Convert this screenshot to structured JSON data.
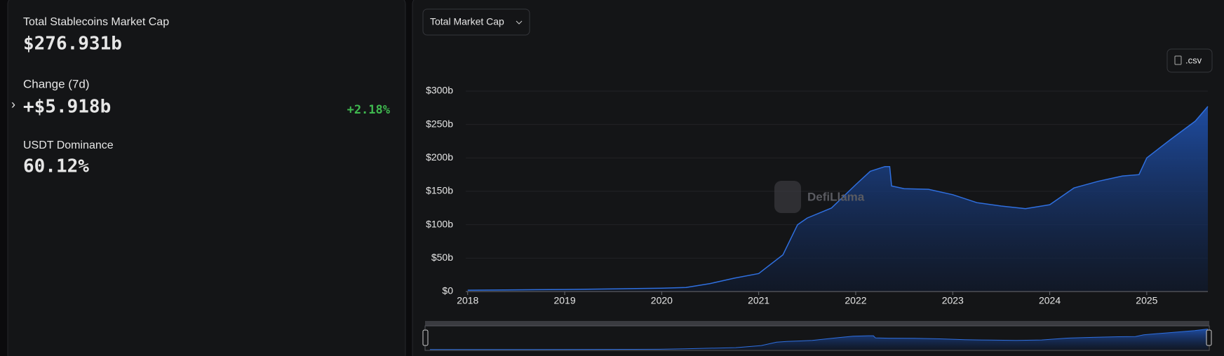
{
  "panel": {
    "stats": [
      {
        "label": "Total Stablecoins Market Cap",
        "value": "$276.931b"
      },
      {
        "label": "Change (7d)",
        "value": "+$5.918b"
      },
      {
        "label": "USDT Dominance",
        "value": "60.12%"
      }
    ],
    "change_pct": "+2.18%"
  },
  "controls": {
    "dropdown": "Total Market Cap",
    "csv": ".csv"
  },
  "chart_data": {
    "type": "area",
    "watermark": "DefiLlama",
    "color": "#2f6fdf",
    "x": [
      2018.0,
      2018.5,
      2019.0,
      2019.5,
      2020.0,
      2020.25,
      2020.5,
      2020.75,
      2021.0,
      2021.25,
      2021.4,
      2021.5,
      2021.75,
      2022.0,
      2022.15,
      2022.3,
      2022.35,
      2022.37,
      2022.5,
      2022.75,
      2023.0,
      2023.25,
      2023.5,
      2023.75,
      2024.0,
      2024.25,
      2024.5,
      2024.75,
      2024.92,
      2025.0,
      2025.25,
      2025.5,
      2025.63
    ],
    "values": [
      2,
      2.5,
      3,
      4,
      5,
      6,
      12,
      20,
      27,
      55,
      100,
      110,
      125,
      160,
      180,
      187,
      187,
      158,
      154,
      153,
      145,
      133,
      128,
      124,
      130,
      155,
      165,
      173,
      175,
      200,
      228,
      255,
      277
    ],
    "xlim": [
      2017.98,
      2025.63
    ],
    "xticks": [
      2018,
      2019,
      2020,
      2021,
      2022,
      2023,
      2024,
      2025
    ],
    "ylim": [
      0,
      300
    ],
    "yticks": [
      {
        "value": 0,
        "label": "$0"
      },
      {
        "value": 50,
        "label": "$50b"
      },
      {
        "value": 100,
        "label": "$100b"
      },
      {
        "value": 150,
        "label": "$150b"
      },
      {
        "value": 200,
        "label": "$200b"
      },
      {
        "value": 250,
        "label": "$250b"
      },
      {
        "value": 300,
        "label": "$300b"
      }
    ],
    "grid": true
  }
}
